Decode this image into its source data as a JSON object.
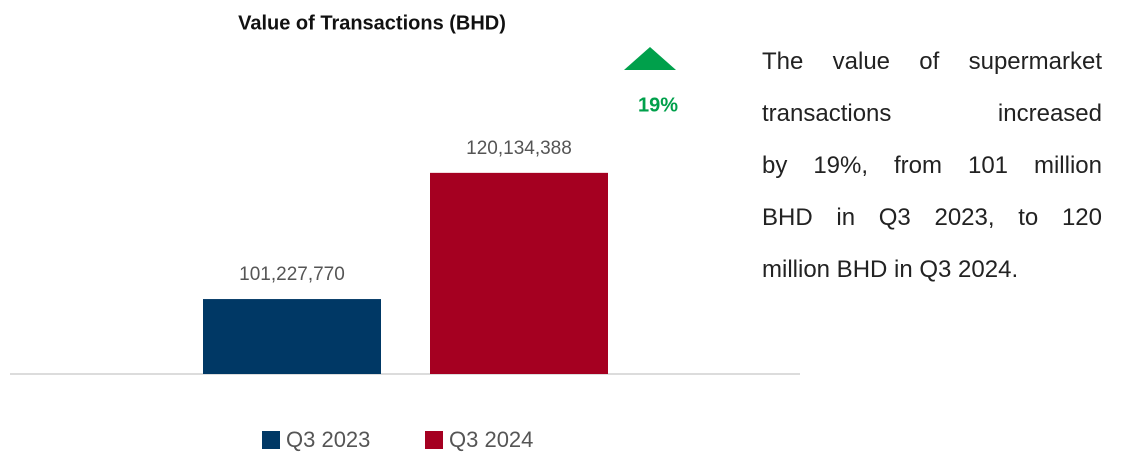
{
  "chart_data": {
    "type": "bar",
    "title": "Value of Transactions (BHD)",
    "series": [
      {
        "name": "Q3 2023",
        "color": "#003865",
        "values": [
          101227770
        ],
        "value_labels": [
          "101,227,770"
        ]
      },
      {
        "name": "Q3 2024",
        "color": "#a50021",
        "values": [
          120134388
        ],
        "value_labels": [
          "120,134,388"
        ]
      }
    ],
    "ylim": [
      90000000,
      130000000
    ],
    "annotation": {
      "text": "19%",
      "color": "#00a04b"
    }
  },
  "description": {
    "lines": [
      "The value of supermarket",
      "transactions increased",
      "by 19%, from 101 million",
      "BHD in Q3 2023, to 120",
      "million BHD in Q3 2024."
    ]
  }
}
